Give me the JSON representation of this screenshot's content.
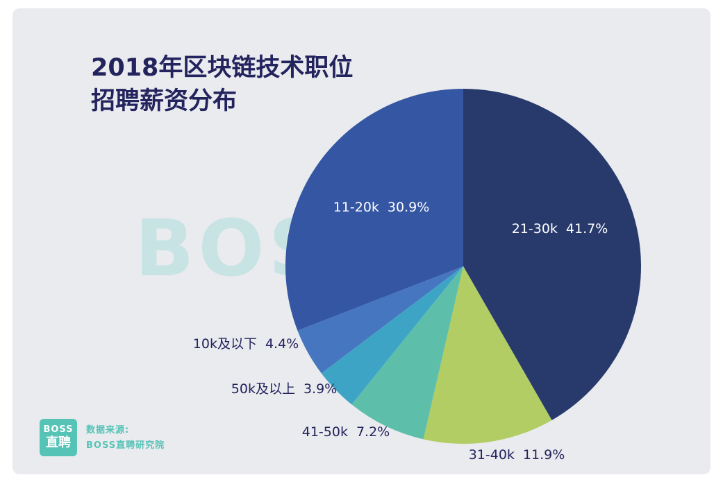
{
  "chart_data": {
    "type": "pie",
    "title": "2018年区块链技术职位",
    "subtitle": "招聘薪资分布",
    "unit": "%",
    "slices": [
      {
        "label": "21-30k",
        "value": 41.7,
        "display": "41.7%",
        "color": "#283a6c"
      },
      {
        "label": "31-40k",
        "value": 11.9,
        "display": "11.9%",
        "color": "#b1cd63"
      },
      {
        "label": "41-50k",
        "value": 7.2,
        "display": "7.2%",
        "color": "#5dbfaa"
      },
      {
        "label": "50k及以上",
        "value": 3.9,
        "display": "3.9%",
        "color": "#3ea4c5"
      },
      {
        "label": "10k及以下",
        "value": 4.4,
        "display": "4.4%",
        "color": "#4676bf"
      },
      {
        "label": "11-20k",
        "value": 30.9,
        "display": "30.9%",
        "color": "#3456a3"
      }
    ],
    "label_colors": {
      "outside": "#23235e",
      "inside": "#ffffff"
    }
  },
  "watermark": "BOSS直聘",
  "source": {
    "logo_line1": "BOSS",
    "logo_line2": "直聘",
    "label": "数据来源:",
    "name": "BOSS直聘研究院",
    "color": "#55c3b6"
  }
}
